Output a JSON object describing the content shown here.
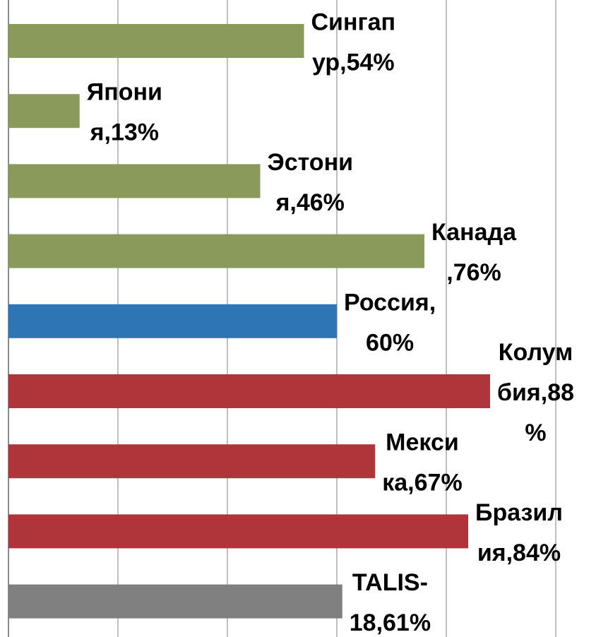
{
  "chart_data": {
    "type": "bar",
    "orientation": "horizontal",
    "values": [
      54,
      13,
      46,
      76,
      60,
      88,
      67,
      84,
      61
    ],
    "value_labels": [
      [
        "Сингап",
        "ур,54%"
      ],
      [
        "Япони",
        "я,13%"
      ],
      [
        "Эстони",
        "я,46%"
      ],
      [
        "Канада",
        ",76%"
      ],
      [
        "Россия,",
        "60%"
      ],
      [
        "Колум",
        "бия,88",
        "%"
      ],
      [
        "Мекси",
        "ка,67%"
      ],
      [
        "Бразил",
        "ия,84%"
      ],
      [
        "TALIS-",
        "18,61%"
      ]
    ],
    "colors": [
      "#8a9a5b",
      "#8a9a5b",
      "#8a9a5b",
      "#8a9a5b",
      "#2e75b6",
      "#b0353a",
      "#b0353a",
      "#b0353a",
      "#808080"
    ],
    "xlim": [
      0,
      100
    ],
    "xticks": [
      0,
      20,
      40,
      60,
      80,
      100
    ],
    "grid": true
  }
}
